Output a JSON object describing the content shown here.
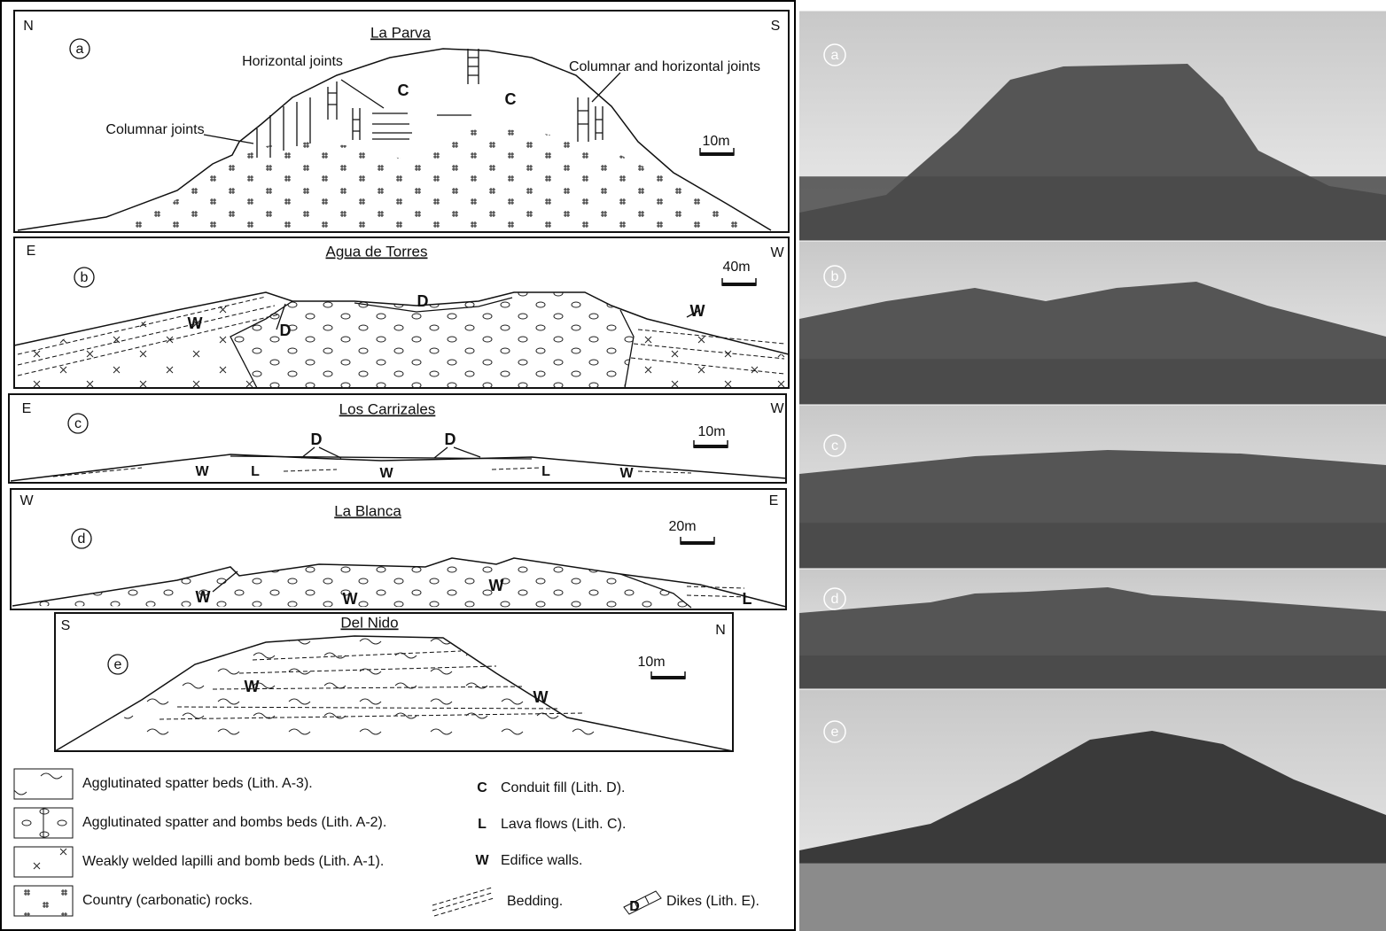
{
  "panels": [
    {
      "letter": "a",
      "title": "La Parva",
      "left": "N",
      "right": "S",
      "scale": "10m",
      "labels": [
        "Horizontal joints",
        "Columnar and horizontal joints",
        "Columnar joints",
        "C",
        "C"
      ]
    },
    {
      "letter": "b",
      "title": "Agua de Torres",
      "left": "E",
      "right": "W",
      "scale": "40m",
      "labels": [
        "D",
        "D",
        "W",
        "W"
      ]
    },
    {
      "letter": "c",
      "title": "Los Carrizales",
      "left": "E",
      "right": "W",
      "scale": "10m",
      "labels": [
        "D",
        "D",
        "W",
        "L",
        "W",
        "L",
        "W"
      ]
    },
    {
      "letter": "d",
      "title": "La Blanca",
      "left": "W",
      "right": "E",
      "scale": "20m",
      "labels": [
        "W",
        "W",
        "W",
        "L"
      ]
    },
    {
      "letter": "e",
      "title": "Del Nido",
      "left": "S",
      "right": "N",
      "scale": "10m",
      "labels": [
        "W",
        "W"
      ]
    }
  ],
  "legend_patterns": [
    "Agglutinated spatter beds (Lith. A-3).",
    "Agglutinated spatter and bombs beds (Lith. A-2).",
    "Weakly welded lapilli and bomb beds (Lith. A-1).",
    "Country (carbonatic) rocks."
  ],
  "legend_keys": [
    {
      "key": "C",
      "text": "Conduit fill (Lith. D)."
    },
    {
      "key": "L",
      "text": "Lava flows (Lith. C)."
    },
    {
      "key": "W",
      "text": "Edifice walls."
    }
  ],
  "legend_lines": {
    "bedding": "Bedding.",
    "dike_symbol": "D",
    "dikes": "Dikes (Lith. E)."
  },
  "photos": [
    "a",
    "b",
    "c",
    "d",
    "e"
  ]
}
